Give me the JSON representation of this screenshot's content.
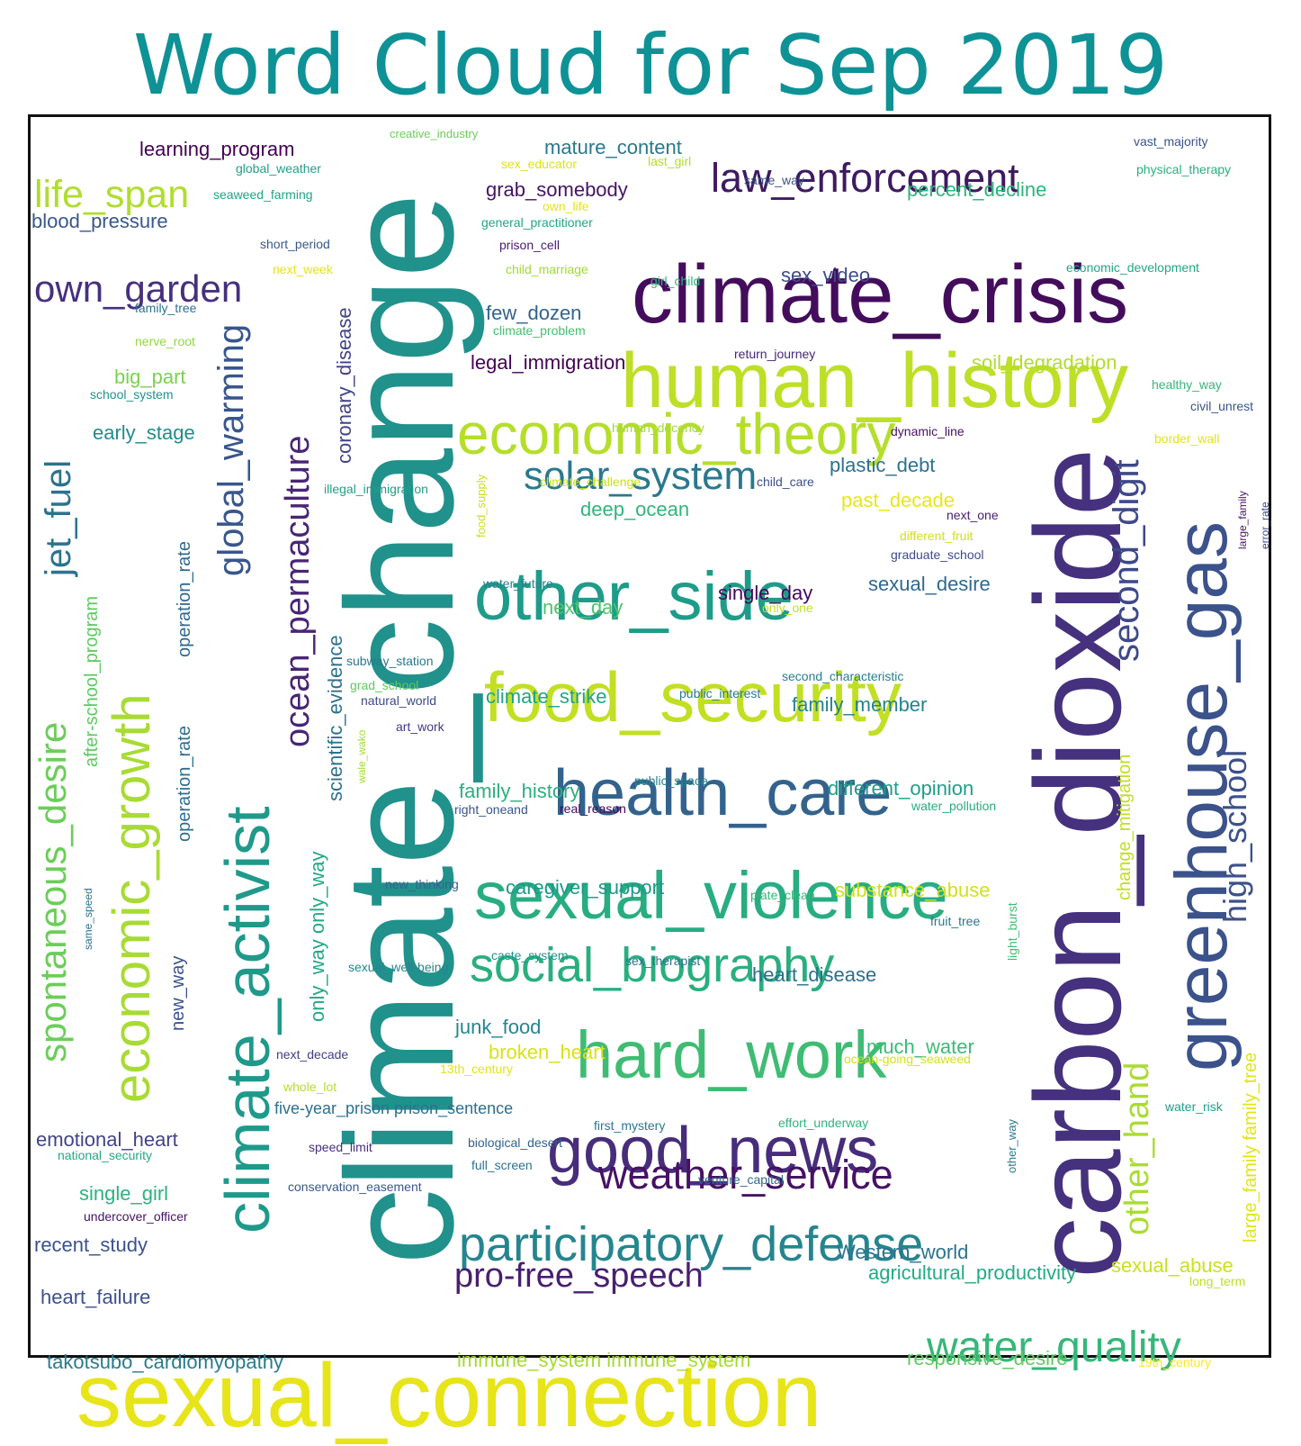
{
  "title": "Word Cloud for Sep 2019",
  "words": [
    {
      "text": "climate_change",
      "color": "#21918c",
      "weight": 175
    },
    {
      "text": "carbon_dioxide",
      "color": "#46317e",
      "weight": 140
    },
    {
      "text": "sexual_connection",
      "color": "#e7e419",
      "weight": 100
    },
    {
      "text": "climate_crisis",
      "color": "#440d5c",
      "weight": 92
    },
    {
      "text": "human_history",
      "color": "#bddf26",
      "weight": 88
    },
    {
      "text": "greenhouse_gas",
      "color": "#3b528b",
      "weight": 84
    },
    {
      "text": "food_security",
      "color": "#c2df23",
      "weight": 80
    },
    {
      "text": "other_side",
      "color": "#1e9c89",
      "weight": 78
    },
    {
      "text": "sexual_violence",
      "color": "#27ad81",
      "weight": 78
    },
    {
      "text": "hard_work",
      "color": "#3fbc73",
      "weight": 76
    },
    {
      "text": "health_care",
      "color": "#33638d",
      "weight": 74
    },
    {
      "text": "good_news",
      "color": "#472d7b",
      "weight": 74
    },
    {
      "text": "climate_activist",
      "color": "#1f998a",
      "weight": 72
    },
    {
      "text": "economic_theory",
      "color": "#b5de2b",
      "weight": 68
    },
    {
      "text": "economic_growth",
      "color": "#a8db34",
      "weight": 62
    },
    {
      "text": "social_biography",
      "color": "#29af7f",
      "weight": 56
    },
    {
      "text": "participatory_defense",
      "color": "#25858e",
      "weight": 56
    },
    {
      "text": "water_quality",
      "color": "#35b779",
      "weight": 50
    },
    {
      "text": "weather_service",
      "color": "#471164",
      "weight": 48
    },
    {
      "text": "spontaneous_desire",
      "color": "#6ccd5a",
      "weight": 46
    },
    {
      "text": "solar_system",
      "color": "#2a788e",
      "weight": 46
    },
    {
      "text": "law_enforcement",
      "color": "#3e1a61",
      "weight": 46
    },
    {
      "text": "life_span",
      "color": "#b0dd2f",
      "weight": 45
    },
    {
      "text": "own_garden",
      "color": "#46307e",
      "weight": 44
    },
    {
      "text": "jet_fuel",
      "color": "#2c728e",
      "weight": 44
    },
    {
      "text": "second_digit",
      "color": "#3e4989",
      "weight": 42
    },
    {
      "text": "global_warming",
      "color": "#39568c",
      "weight": 42
    },
    {
      "text": "ocean_permaculture",
      "color": "#482576",
      "weight": 40
    },
    {
      "text": "other_hand",
      "color": "#aadc32",
      "weight": 40
    },
    {
      "text": "pro-free_speech",
      "color": "#481f70",
      "weight": 40
    },
    {
      "text": "high_school",
      "color": "#3c508b",
      "weight": 38
    },
    {
      "text": "coronary_disease",
      "color": "#414487",
      "weight": 24
    },
    {
      "text": "scientific_evidence",
      "color": "#2d718e",
      "weight": 24
    },
    {
      "text": "only_way only_way",
      "color": "#22a884",
      "weight": 24
    },
    {
      "text": "change_mitigation",
      "color": "#c0df25",
      "weight": 22
    },
    {
      "text": "after-school_program",
      "color": "#5ec962",
      "weight": 22
    },
    {
      "text": "operation_rate",
      "color": "#31688e",
      "weight": 22
    },
    {
      "text": "operation_rate",
      "color": "#2e6e8e",
      "weight": 22
    },
    {
      "text": "new_way",
      "color": "#3b528b",
      "weight": 22
    },
    {
      "text": "large_family family_tree",
      "color": "#e2e418",
      "weight": 22
    },
    {
      "text": "learning_program",
      "color": "#440154",
      "weight": 24
    },
    {
      "text": "mature_content",
      "color": "#2a788e",
      "weight": 24
    },
    {
      "text": "grab_somebody",
      "color": "#471365",
      "weight": 24
    },
    {
      "text": "percent_decline",
      "color": "#2fb47c",
      "weight": 24
    },
    {
      "text": "blood_pressure",
      "color": "#38588c",
      "weight": 24
    },
    {
      "text": "sex_video",
      "color": "#3e4c8a",
      "weight": 24
    },
    {
      "text": "few_dozen",
      "color": "#33638d",
      "weight": 24
    },
    {
      "text": "big_part",
      "color": "#7ad151",
      "weight": 24
    },
    {
      "text": "early_stage",
      "color": "#228b8d",
      "weight": 24
    },
    {
      "text": "legal_immigration",
      "color": "#440154",
      "weight": 24
    },
    {
      "text": "soil_degradation",
      "color": "#b2dd2d",
      "weight": 24
    },
    {
      "text": "plastic_debt",
      "color": "#2c728e",
      "weight": 24
    },
    {
      "text": "past_decade",
      "color": "#eae51a",
      "weight": 24
    },
    {
      "text": "deep_ocean",
      "color": "#31b57b",
      "weight": 24
    },
    {
      "text": "single_day",
      "color": "#46075a",
      "weight": 24
    },
    {
      "text": "sexual_desire",
      "color": "#31688e",
      "weight": 24
    },
    {
      "text": "next_day",
      "color": "#4ec36b",
      "weight": 24
    },
    {
      "text": "climate_strike",
      "color": "#20a386",
      "weight": 24
    },
    {
      "text": "family_member",
      "color": "#26828e",
      "weight": 24
    },
    {
      "text": "family_history",
      "color": "#2ab07f",
      "weight": 24
    },
    {
      "text": "different_opinion",
      "color": "#1f9e89",
      "weight": 24
    },
    {
      "text": "caregiver_support",
      "color": "#1f988b",
      "weight": 24
    },
    {
      "text": "substance_abuse",
      "color": "#d0e11c",
      "weight": 24
    },
    {
      "text": "heart_disease",
      "color": "#2e6e8e",
      "weight": 24
    },
    {
      "text": "junk_food",
      "color": "#24868e",
      "weight": 24
    },
    {
      "text": "broken_heart",
      "color": "#d8e219",
      "weight": 24
    },
    {
      "text": "much_water",
      "color": "#3bbb75",
      "weight": 24
    },
    {
      "text": "emotional_heart",
      "color": "#414487",
      "weight": 24
    },
    {
      "text": "five-year_prison prison_sentence",
      "color": "#2d708e",
      "weight": 20
    },
    {
      "text": "single_girl",
      "color": "#2db27d",
      "weight": 24
    },
    {
      "text": "recent_study",
      "color": "#3b528b",
      "weight": 24
    },
    {
      "text": "Western_world",
      "color": "#2c728e",
      "weight": 24
    },
    {
      "text": "agricultural_productivity",
      "color": "#25ab82",
      "weight": 24
    },
    {
      "text": "sexual_abuse",
      "color": "#cae11f",
      "weight": 24
    },
    {
      "text": "heart_failure",
      "color": "#3b528b",
      "weight": 24
    },
    {
      "text": "takotsubo_cardiomyopathy",
      "color": "#287d8e",
      "weight": 24
    },
    {
      "text": "immune_system immune_system",
      "color": "#a5db36",
      "weight": 24
    },
    {
      "text": "responsive_desire",
      "color": "#5ec962",
      "weight": 24
    },
    {
      "text": "creative_industry",
      "color": "#6ccd5a",
      "weight": 14
    },
    {
      "text": "global_weather",
      "color": "#1fa188",
      "weight": 16
    },
    {
      "text": "seaweed_farming",
      "color": "#20a486",
      "weight": 16
    },
    {
      "text": "short_period",
      "color": "#38588c",
      "weight": 16
    },
    {
      "text": "next_week",
      "color": "#e5e419",
      "weight": 16
    },
    {
      "text": "family_tree",
      "color": "#2c728e",
      "weight": 16
    },
    {
      "text": "nerve_root",
      "color": "#93d741",
      "weight": 16
    },
    {
      "text": "school_system",
      "color": "#21918c",
      "weight": 16
    },
    {
      "text": "sex_educator",
      "color": "#dde318",
      "weight": 16
    },
    {
      "text": "last_girl",
      "color": "#b2dd2d",
      "weight": 16
    },
    {
      "text": "own_life",
      "color": "#e5e419",
      "weight": 16
    },
    {
      "text": "general_practitioner",
      "color": "#22a785",
      "weight": 16
    },
    {
      "text": "prison_cell",
      "color": "#481c6e",
      "weight": 16
    },
    {
      "text": "child_marriage",
      "color": "#a0da39",
      "weight": 16
    },
    {
      "text": "girl_child",
      "color": "#2fb47c",
      "weight": 16
    },
    {
      "text": "climate_problem",
      "color": "#44bf70",
      "weight": 16
    },
    {
      "text": "return_journey",
      "color": "#482878",
      "weight": 16
    },
    {
      "text": "human_decency",
      "color": "#a2da37",
      "weight": 16
    },
    {
      "text": "illegal_immigration",
      "color": "#1fa088",
      "weight": 16
    },
    {
      "text": "climate_challenge",
      "color": "#c8e020",
      "weight": 16
    },
    {
      "text": "child_care",
      "color": "#3d4e8a",
      "weight": 16
    },
    {
      "text": "dynamic_line",
      "color": "#471063",
      "weight": 16
    },
    {
      "text": "food_supply",
      "color": "#c8e020",
      "weight": 14
    },
    {
      "text": "water_future",
      "color": "#277f8e",
      "weight": 16
    },
    {
      "text": "subway_station",
      "color": "#2a788e",
      "weight": 16
    },
    {
      "text": "grad_school",
      "color": "#5ec962",
      "weight": 16
    },
    {
      "text": "natural_world",
      "color": "#3e4a89",
      "weight": 16
    },
    {
      "text": "art_work",
      "color": "#443a83",
      "weight": 16
    },
    {
      "text": "public_interest",
      "color": "#2a788e",
      "weight": 16
    },
    {
      "text": "second_characteristic",
      "color": "#277f8e",
      "weight": 16
    },
    {
      "text": "only_one",
      "color": "#c2df23",
      "weight": 16
    },
    {
      "text": "public_space",
      "color": "#25858e",
      "weight": 16
    },
    {
      "text": "real_reason",
      "color": "#46085c",
      "weight": 16
    },
    {
      "text": "right_oneand",
      "color": "#3a548c",
      "weight": 16
    },
    {
      "text": "water_pollution",
      "color": "#26ad81",
      "weight": 16
    },
    {
      "text": "wale_wako",
      "color": "#a5db36",
      "weight": 13
    },
    {
      "text": "new_thinking",
      "color": "#33638d",
      "weight": 16
    },
    {
      "text": "caste_system",
      "color": "#1f948c",
      "weight": 16
    },
    {
      "text": "sexual_well-being",
      "color": "#24868e",
      "weight": 16
    },
    {
      "text": "sex_therapist",
      "color": "#2c728e",
      "weight": 16
    },
    {
      "text": "plate_clean",
      "color": "#35b779",
      "weight": 16
    },
    {
      "text": "fruit_tree",
      "color": "#2a788e",
      "weight": 16
    },
    {
      "text": "light_burst",
      "color": "#40bd72",
      "weight": 16
    },
    {
      "text": "next_decade",
      "color": "#424086",
      "weight": 16
    },
    {
      "text": "13th_century",
      "color": "#e2e418",
      "weight": 16
    },
    {
      "text": "ocean-going_seaweed",
      "color": "#d5e21a",
      "weight": 16
    },
    {
      "text": "whole_lot",
      "color": "#b5de2b",
      "weight": 16
    },
    {
      "text": "first_mystery",
      "color": "#2a788e",
      "weight": 16
    },
    {
      "text": "effort_underway",
      "color": "#2fb47c",
      "weight": 16
    },
    {
      "text": "water_risk",
      "color": "#1fa088",
      "weight": 16
    },
    {
      "text": "speed_limit",
      "color": "#46307e",
      "weight": 16
    },
    {
      "text": "biological_desert",
      "color": "#33638d",
      "weight": 16
    },
    {
      "text": "full_screen",
      "color": "#2c728e",
      "weight": 16
    },
    {
      "text": "national_security",
      "color": "#22a884",
      "weight": 16
    },
    {
      "text": "conservation_easement",
      "color": "#38588c",
      "weight": 16
    },
    {
      "text": "venture_capital",
      "color": "#306a8e",
      "weight": 16
    },
    {
      "text": "other_way",
      "color": "#2a788e",
      "weight": 16
    },
    {
      "text": "undercover_officer",
      "color": "#471365",
      "weight": 16
    },
    {
      "text": "long_term",
      "color": "#bddf26",
      "weight": 16
    },
    {
      "text": "19th_century",
      "color": "#fde725",
      "weight": 16
    },
    {
      "text": "vast_majority",
      "color": "#3a548c",
      "weight": 16
    },
    {
      "text": "physical_therapy",
      "color": "#2ab07f",
      "weight": 16
    },
    {
      "text": "same_way",
      "color": "#3b528b",
      "weight": 16
    },
    {
      "text": "economic_development",
      "color": "#22a785",
      "weight": 16
    },
    {
      "text": "healthy_way",
      "color": "#35b779",
      "weight": 16
    },
    {
      "text": "civil_unrest",
      "color": "#3a548c",
      "weight": 16
    },
    {
      "text": "border_wall",
      "color": "#e2e418",
      "weight": 16
    },
    {
      "text": "next_one",
      "color": "#482173",
      "weight": 16
    },
    {
      "text": "different_fruit",
      "color": "#d0e11c",
      "weight": 16
    },
    {
      "text": "graduate_school",
      "color": "#3e4c8a",
      "weight": 16
    },
    {
      "text": "large_family",
      "color": "#471365",
      "weight": 13
    },
    {
      "text": "error_rate",
      "color": "#3e4c8a",
      "weight": 13
    },
    {
      "text": "same_speed",
      "color": "#2d708e",
      "weight": 13
    }
  ]
}
